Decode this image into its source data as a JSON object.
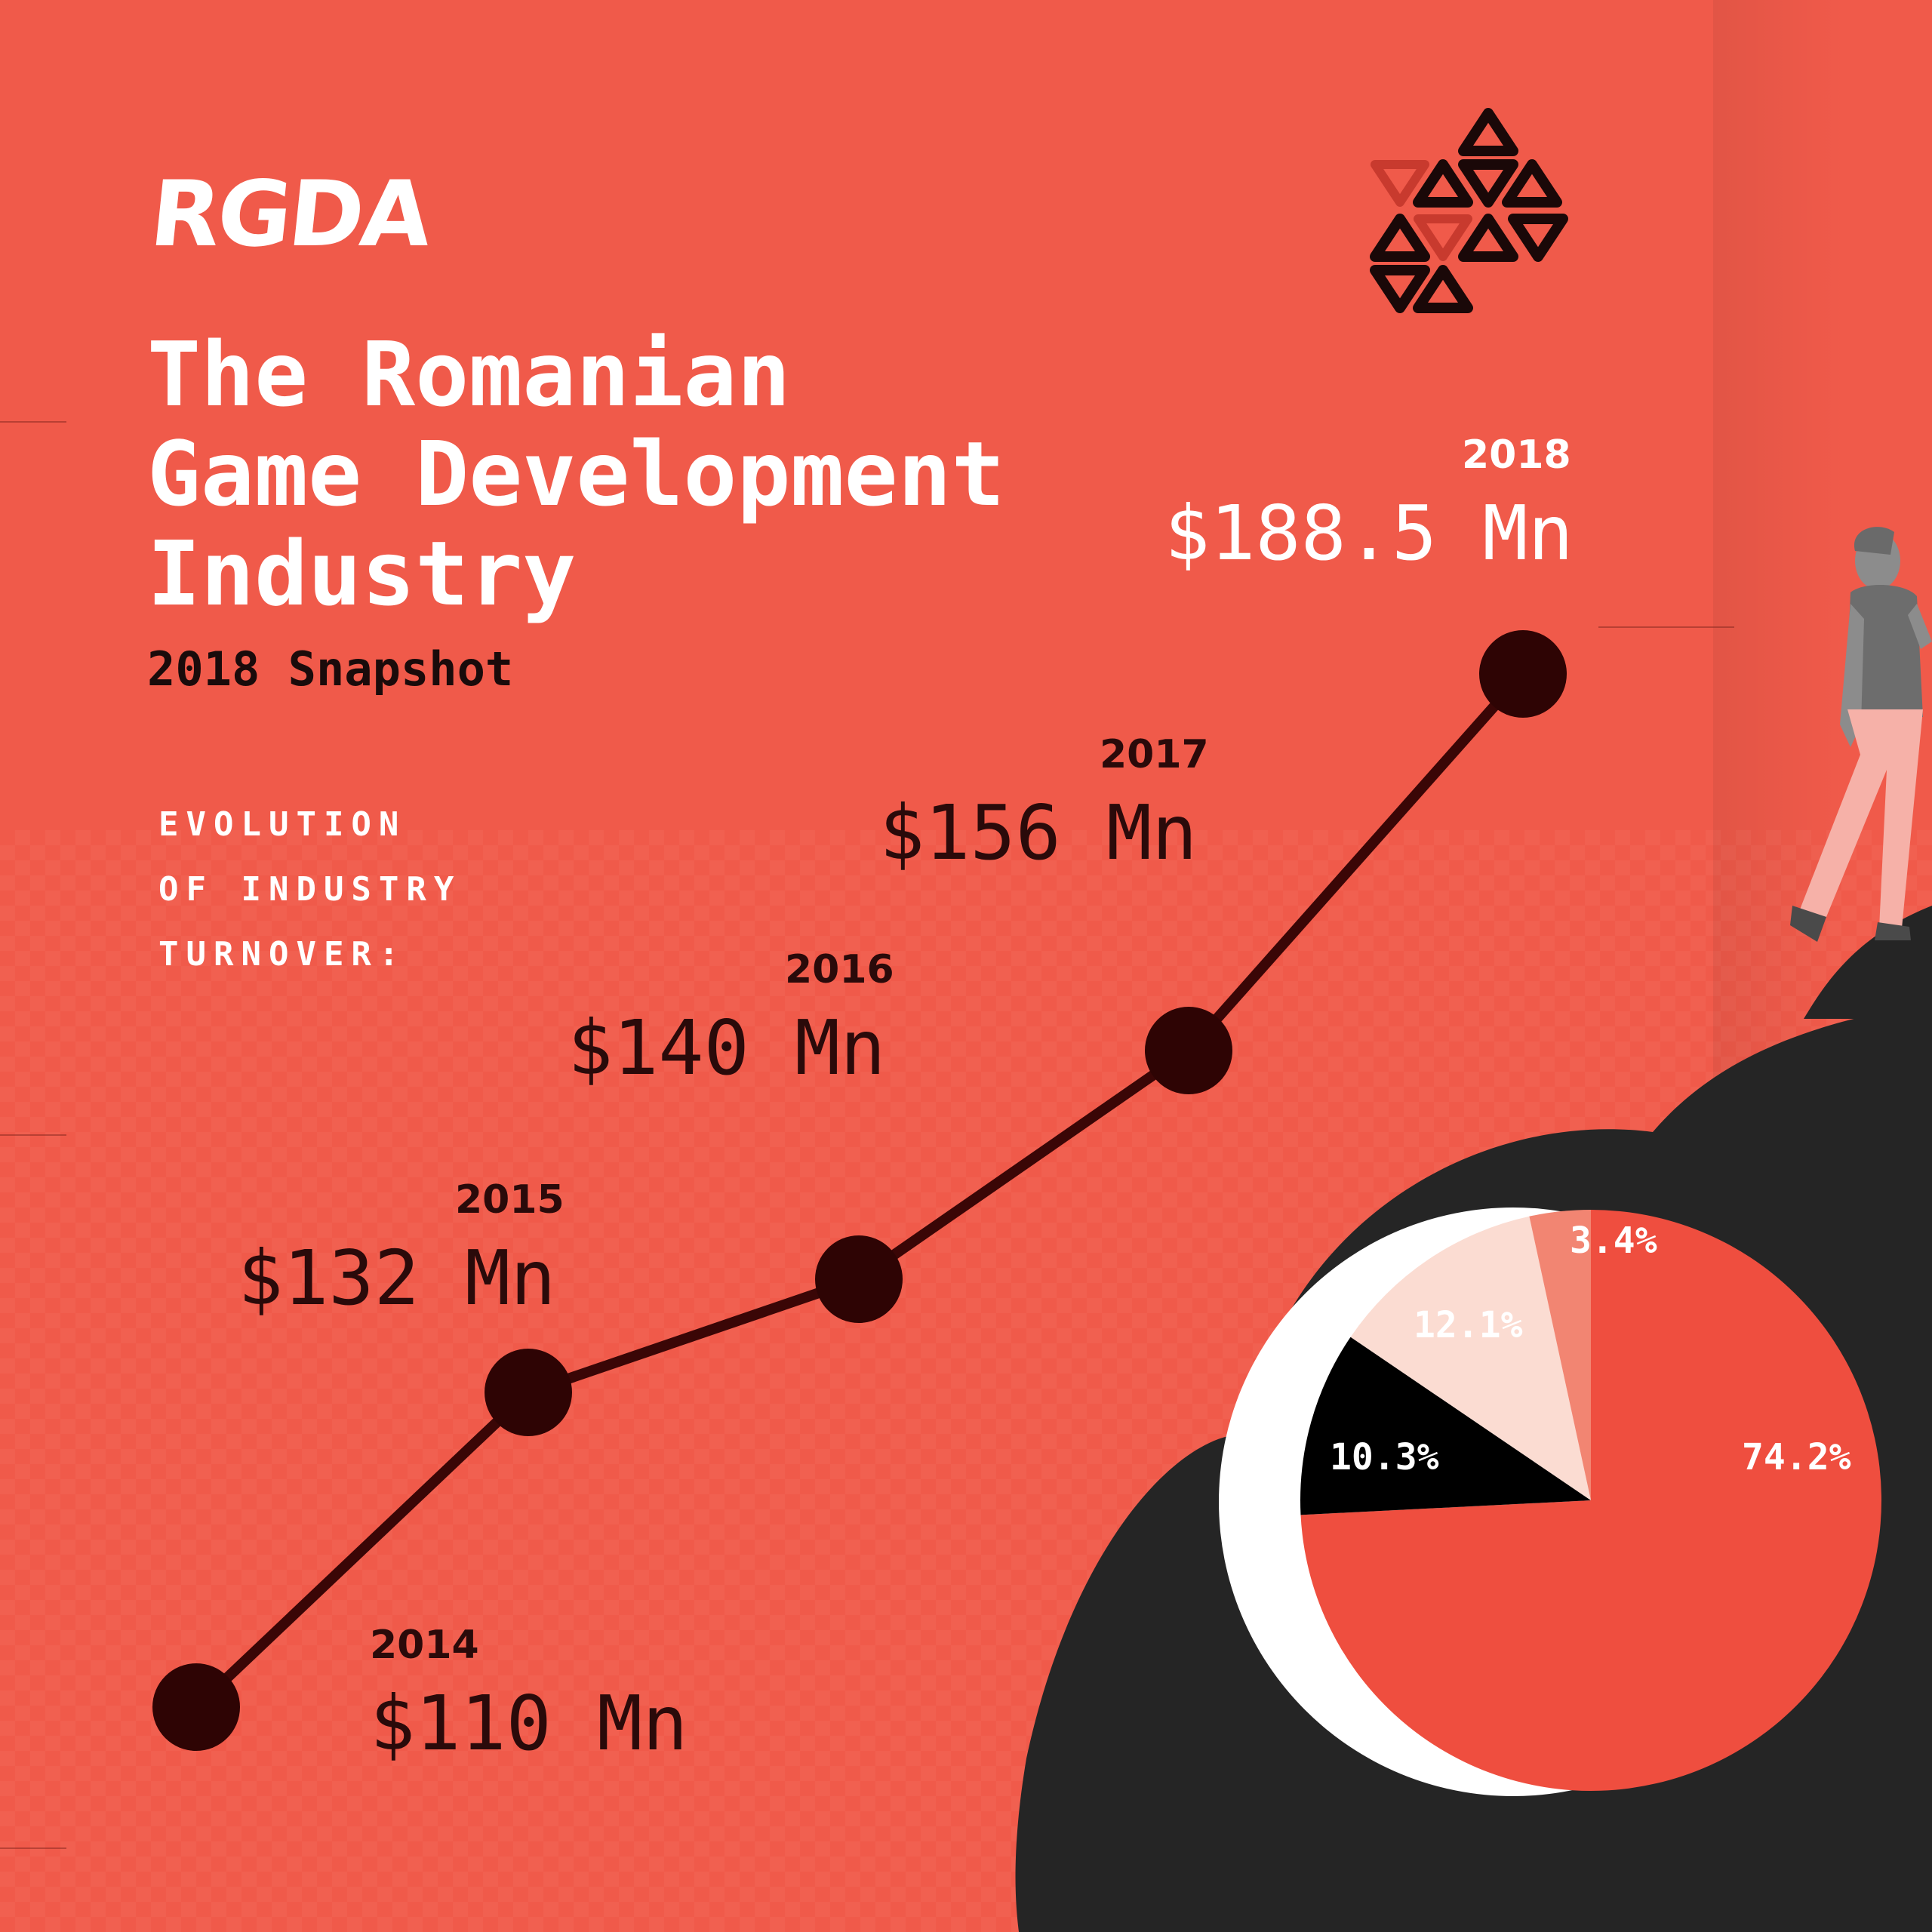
{
  "brand": {
    "logo_text": "RGDA"
  },
  "header": {
    "title_lines": [
      "The Romanian",
      "Game Development",
      "Industry"
    ],
    "subtitle": "2018 Snapshot"
  },
  "section": {
    "label_lines": [
      "EVOLUTION",
      "OF INDUSTRY",
      "TURNOVER:"
    ]
  },
  "colors": {
    "background": "#f05a4a",
    "line": "#3a0606",
    "point": "#2e0404",
    "pie_red": "#ef4e3f",
    "pie_black": "#000000",
    "pie_pink": "#fbdcd2",
    "pie_salmon": "#f28572"
  },
  "chart_data": [
    {
      "type": "line",
      "title": "",
      "x": [
        "2014",
        "2015",
        "2016",
        "2017",
        "2018"
      ],
      "values": [
        110,
        132,
        140,
        156,
        188.5
      ],
      "value_labels": [
        "$110 Mn",
        "$132 Mn",
        "$140 Mn",
        "$156 Mn",
        "$188.5 Mn"
      ],
      "unit": "Mn USD",
      "grid": false,
      "legend": "none"
    },
    {
      "type": "pie",
      "title": "",
      "slices": [
        {
          "label": "74.2%",
          "value": 74.2,
          "color": "#ef4e3f"
        },
        {
          "label": "10.3%",
          "value": 10.3,
          "color": "#000000"
        },
        {
          "label": "12.1%",
          "value": 12.1,
          "color": "#fbdcd2"
        },
        {
          "label": "3.4%",
          "value": 3.4,
          "color": "#f28572"
        }
      ],
      "start": "top",
      "direction": "clockwise",
      "legend": "none"
    }
  ]
}
